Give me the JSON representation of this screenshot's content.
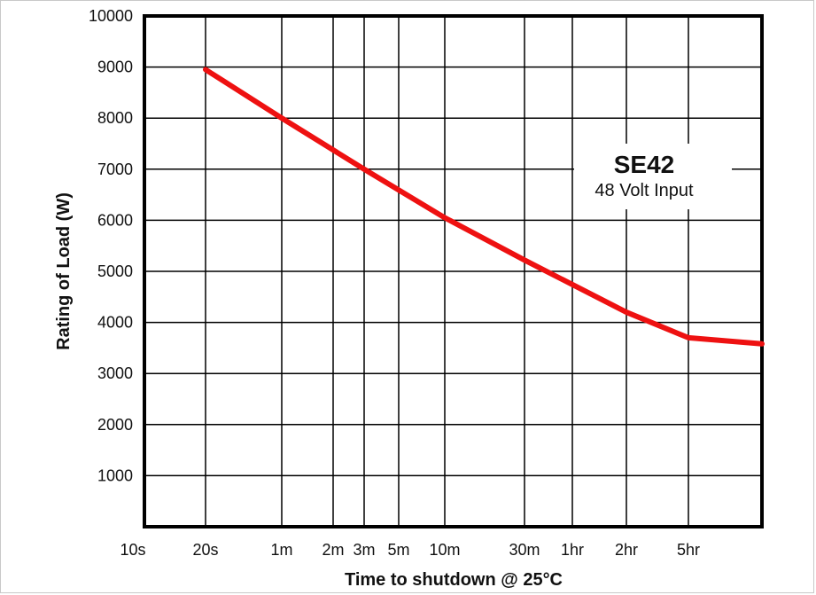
{
  "chart_data": {
    "type": "line",
    "title": "",
    "xlabel": "Time to shutdown @ 25°C",
    "ylabel": "Rating of Load (W)",
    "x_scale": "categorical-log",
    "x_ticks": [
      "10s",
      "20s",
      "1m",
      "2m",
      "3m",
      "5m",
      "10m",
      "30m",
      "1hr",
      "2hr",
      "5hr"
    ],
    "y_ticks": [
      "1000",
      "2000",
      "3000",
      "4000",
      "5000",
      "6000",
      "7000",
      "8000",
      "9000",
      "10000"
    ],
    "ylim": [
      0,
      10000
    ],
    "grid": true,
    "line_color": "#ee1111",
    "series": [
      {
        "points": [
          {
            "x": "20s",
            "y": 8950
          },
          {
            "x": "1m",
            "y": 8000
          },
          {
            "x": "3m",
            "y": 7000
          },
          {
            "x": "10m",
            "y": 6050
          },
          {
            "x": "30m",
            "y": 5220
          },
          {
            "x": "2hr",
            "y": 4200
          },
          {
            "x": "5hr",
            "y": 3700
          },
          {
            "x": "end",
            "y": 3580
          }
        ]
      }
    ],
    "annotation": {
      "title": "SE42",
      "subtitle": "48 Volt Input"
    }
  }
}
